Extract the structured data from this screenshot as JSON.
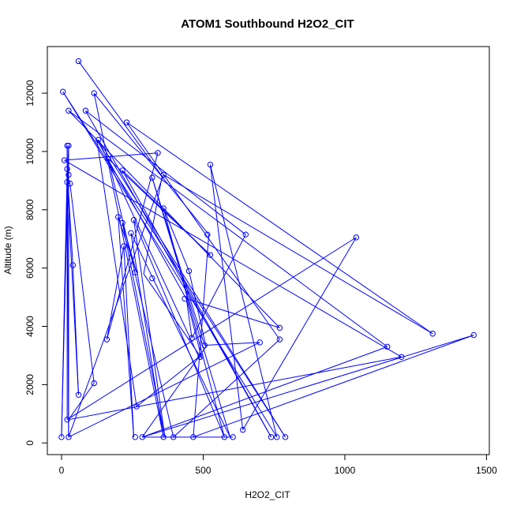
{
  "chart_data": {
    "type": "line",
    "title": "ATOM1 Southbound H2O2_CIT",
    "xlabel": "H2O2_CIT",
    "ylabel": "Altitude (m)",
    "xlim": [
      -50,
      1510
    ],
    "ylim": [
      -400,
      13600
    ],
    "xticks": [
      0,
      500,
      1000,
      1500
    ],
    "yticks": [
      0,
      2000,
      4000,
      6000,
      8000,
      10000,
      12000
    ],
    "grid": false,
    "series_color": "#0000ff",
    "series": [
      {
        "marker": "open-circle",
        "points": [
          [
            60,
            13100
          ],
          [
            5,
            12050
          ],
          [
            115,
            12000
          ],
          [
            85,
            11400
          ],
          [
            25,
            11400
          ],
          [
            230,
            11000
          ],
          [
            130,
            10400
          ],
          [
            20,
            10200
          ],
          [
            25,
            10200
          ],
          [
            340,
            9950
          ],
          [
            165,
            9750
          ],
          [
            10,
            9700
          ],
          [
            525,
            9550
          ],
          [
            20,
            9400
          ],
          [
            215,
            9350
          ],
          [
            360,
            9200
          ],
          [
            320,
            9100
          ],
          [
            25,
            9200
          ],
          [
            20,
            8950
          ],
          [
            30,
            8900
          ],
          [
            360,
            8050
          ],
          [
            200,
            7750
          ],
          [
            255,
            7650
          ],
          [
            215,
            7550
          ],
          [
            1040,
            7050
          ],
          [
            245,
            7200
          ],
          [
            515,
            7150
          ],
          [
            650,
            7150
          ],
          [
            220,
            6750
          ],
          [
            525,
            6450
          ],
          [
            40,
            6100
          ],
          [
            450,
            5900
          ],
          [
            260,
            5850
          ],
          [
            320,
            5650
          ],
          [
            435,
            4950
          ],
          [
            770,
            3950
          ],
          [
            1310,
            3750
          ],
          [
            1455,
            3700
          ],
          [
            160,
            3550
          ],
          [
            460,
            3600
          ],
          [
            770,
            3550
          ],
          [
            700,
            3450
          ],
          [
            505,
            3350
          ],
          [
            1150,
            3300
          ],
          [
            1200,
            2950
          ],
          [
            490,
            2950
          ],
          [
            115,
            2050
          ],
          [
            60,
            1650
          ],
          [
            265,
            1250
          ],
          [
            20,
            800
          ],
          [
            640,
            450
          ],
          [
            0,
            200
          ],
          [
            25,
            200
          ],
          [
            260,
            200
          ],
          [
            285,
            200
          ],
          [
            360,
            200
          ],
          [
            395,
            200
          ],
          [
            465,
            200
          ],
          [
            575,
            200
          ],
          [
            605,
            200
          ],
          [
            740,
            200
          ],
          [
            760,
            200
          ],
          [
            790,
            200
          ]
        ],
        "path": [
          [
            60,
            13100
          ],
          [
            355,
            9150
          ],
          [
            290,
            5800
          ],
          [
            495,
            2900
          ],
          [
            440,
            5000
          ],
          [
            460,
            3600
          ],
          [
            650,
            7150
          ],
          [
            85,
            11400
          ],
          [
            740,
            200
          ],
          [
            215,
            9350
          ],
          [
            525,
            6450
          ],
          [
            165,
            9750
          ],
          [
            395,
            200
          ],
          [
            770,
            3550
          ],
          [
            230,
            11000
          ],
          [
            1310,
            3750
          ],
          [
            360,
            9200
          ],
          [
            25,
            200
          ],
          [
            700,
            3450
          ],
          [
            505,
            3350
          ],
          [
            320,
            9100
          ],
          [
            595,
            200
          ],
          [
            245,
            7200
          ],
          [
            360,
            200
          ],
          [
            115,
            12000
          ],
          [
            520,
            7150
          ],
          [
            465,
            200
          ],
          [
            1455,
            3700
          ],
          [
            285,
            200
          ],
          [
            1150,
            3300
          ],
          [
            25,
            11400
          ],
          [
            770,
            3950
          ],
          [
            440,
            4950
          ],
          [
            125,
            10400
          ],
          [
            265,
            1250
          ],
          [
            485,
            2950
          ],
          [
            130,
            10400
          ],
          [
            790,
            200
          ],
          [
            5,
            12050
          ],
          [
            760,
            200
          ],
          [
            525,
            9550
          ],
          [
            640,
            450
          ],
          [
            1040,
            7050
          ],
          [
            20,
            800
          ],
          [
            20,
            10200
          ],
          [
            25,
            200
          ],
          [
            25,
            10200
          ],
          [
            0,
            200
          ],
          [
            20,
            9400
          ],
          [
            40,
            6100
          ],
          [
            60,
            1650
          ],
          [
            20,
            8950
          ],
          [
            30,
            8900
          ],
          [
            115,
            2050
          ],
          [
            25,
            800
          ],
          [
            1200,
            2950
          ],
          [
            10,
            9700
          ],
          [
            340,
            9950
          ],
          [
            160,
            3550
          ],
          [
            220,
            6750
          ],
          [
            255,
            200
          ],
          [
            200,
            7750
          ],
          [
            265,
            5850
          ],
          [
            215,
            7550
          ],
          [
            365,
            200
          ],
          [
            255,
            7650
          ],
          [
            575,
            200
          ],
          [
            360,
            8050
          ],
          [
            450,
            5900
          ],
          [
            510,
            3300
          ],
          [
            285,
            200
          ],
          [
            605,
            200
          ]
        ]
      }
    ]
  }
}
